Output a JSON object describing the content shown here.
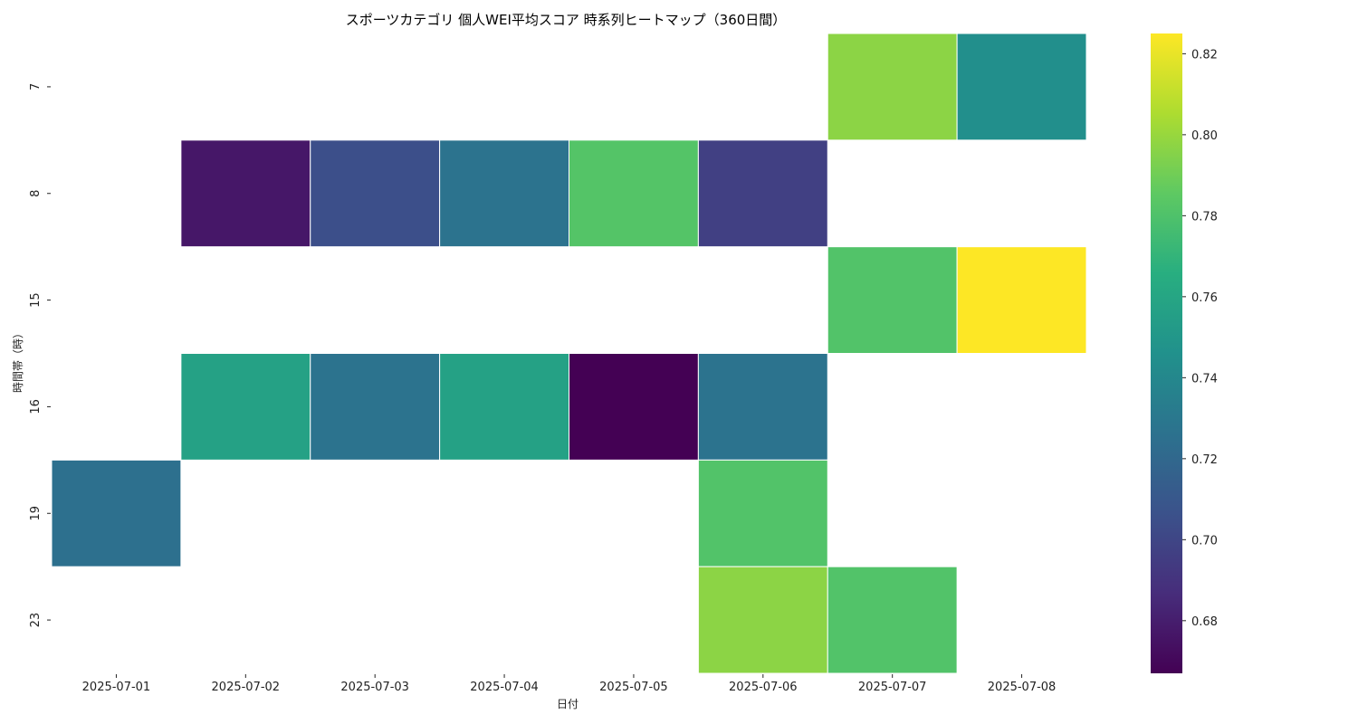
{
  "chart_data": {
    "type": "heatmap",
    "title": "スポーツカテゴリ 個人WEI平均スコア 時系列ヒートマップ（360日間）",
    "xlabel": "日付",
    "ylabel": "時間帯（時）",
    "x_categories": [
      "2025-07-01",
      "2025-07-02",
      "2025-07-03",
      "2025-07-04",
      "2025-07-05",
      "2025-07-06",
      "2025-07-07",
      "2025-07-08"
    ],
    "y_categories": [
      "7",
      "8",
      "15",
      "16",
      "19",
      "23"
    ],
    "values": [
      [
        null,
        null,
        null,
        null,
        null,
        null,
        0.797,
        0.745
      ],
      [
        null,
        0.677,
        0.705,
        0.727,
        0.782,
        0.697,
        null,
        null
      ],
      [
        null,
        null,
        null,
        null,
        null,
        null,
        0.781,
        0.825
      ],
      [
        null,
        0.757,
        0.727,
        0.757,
        0.667,
        0.727,
        null,
        null
      ],
      [
        0.725,
        null,
        null,
        null,
        null,
        0.781,
        null,
        null
      ],
      [
        null,
        null,
        null,
        null,
        null,
        0.797,
        0.781,
        null
      ]
    ],
    "colormap": "viridis",
    "colorbar": {
      "range": [
        0.667,
        0.825
      ],
      "ticks": [
        "0.68",
        "0.70",
        "0.72",
        "0.74",
        "0.76",
        "0.78",
        "0.80",
        "0.82"
      ]
    }
  }
}
